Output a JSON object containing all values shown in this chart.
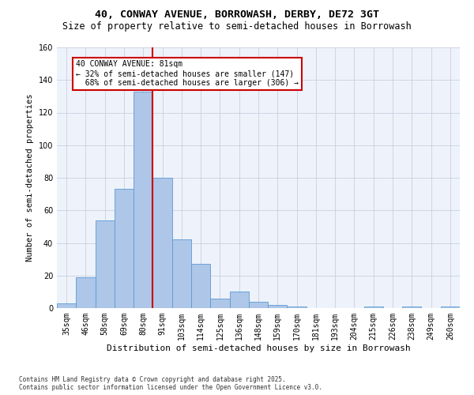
{
  "title": "40, CONWAY AVENUE, BORROWASH, DERBY, DE72 3GT",
  "subtitle": "Size of property relative to semi-detached houses in Borrowash",
  "xlabel": "Distribution of semi-detached houses by size in Borrowash",
  "ylabel": "Number of semi-detached properties",
  "categories": [
    "35sqm",
    "46sqm",
    "58sqm",
    "69sqm",
    "80sqm",
    "91sqm",
    "103sqm",
    "114sqm",
    "125sqm",
    "136sqm",
    "148sqm",
    "159sqm",
    "170sqm",
    "181sqm",
    "193sqm",
    "204sqm",
    "215sqm",
    "226sqm",
    "238sqm",
    "249sqm",
    "260sqm"
  ],
  "bar_values": [
    3,
    19,
    54,
    73,
    133,
    80,
    42,
    27,
    6,
    10,
    4,
    2,
    1,
    0,
    0,
    0,
    1,
    0,
    1,
    0,
    1
  ],
  "bar_color": "#aec6e8",
  "bar_edge_color": "#5b9bd5",
  "marker_label": "40 CONWAY AVENUE: 81sqm",
  "pct_smaller": 32,
  "pct_larger": 68,
  "n_smaller": 147,
  "n_larger": 306,
  "red_line_x": 4.5,
  "ylim": [
    0,
    160
  ],
  "annotation_box_color": "#ffffff",
  "annotation_box_edge": "#cc0000",
  "footer_line1": "Contains HM Land Registry data © Crown copyright and database right 2025.",
  "footer_line2": "Contains public sector information licensed under the Open Government Licence v3.0.",
  "title_fontsize": 9.5,
  "subtitle_fontsize": 8.5,
  "tick_fontsize": 7,
  "ylabel_fontsize": 7.5,
  "xlabel_fontsize": 8,
  "annotation_fontsize": 7,
  "footer_fontsize": 5.5
}
